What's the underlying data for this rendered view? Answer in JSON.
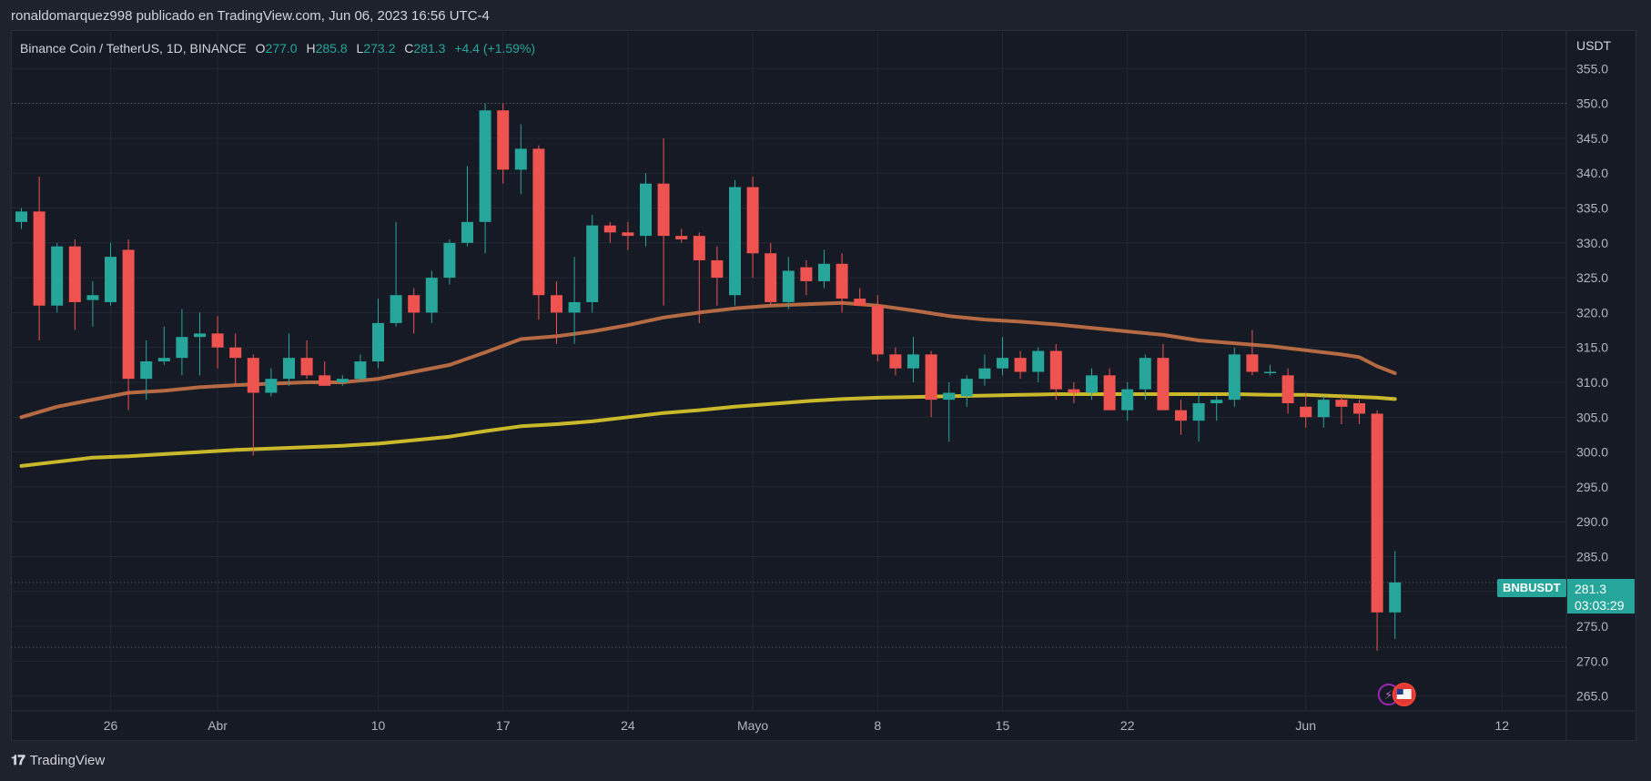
{
  "header": {
    "published_by": "ronaldomarquez998 publicado en TradingView.com, Jun 06, 2023 16:56 UTC-4"
  },
  "legend": {
    "symbol": "Binance Coin / TetherUS, 1D, BINANCE",
    "o_label": "O",
    "o_value": "277.0",
    "h_label": "H",
    "h_value": "285.8",
    "l_label": "L",
    "l_value": "273.2",
    "c_label": "C",
    "c_value": "281.3",
    "change": "+4.4 (+1.59%)"
  },
  "axis": {
    "currency": "USDT"
  },
  "price_tag": {
    "symbol": "BNBUSDT",
    "price": "281.3",
    "countdown": "03:03:29"
  },
  "footer": {
    "brand": "TradingView"
  },
  "colors": {
    "up": "#26a69a",
    "down": "#ef5350",
    "ma_fast": "#b56a43",
    "ma_slow": "#c9b82a",
    "grid": "#232733"
  },
  "chart_data": {
    "type": "candlestick",
    "ylim": [
      263,
      357
    ],
    "y_ticks": [
      265,
      270,
      275,
      280,
      285,
      290,
      295,
      300,
      305,
      310,
      315,
      320,
      325,
      330,
      335,
      340,
      345,
      350,
      355
    ],
    "x_ticks": [
      {
        "label": "26",
        "index": 5
      },
      {
        "label": "Abr",
        "index": 11
      },
      {
        "label": "10",
        "index": 20
      },
      {
        "label": "17",
        "index": 27
      },
      {
        "label": "24",
        "index": 34
      },
      {
        "label": "Mayo",
        "index": 41
      },
      {
        "label": "8",
        "index": 48
      },
      {
        "label": "15",
        "index": 55
      },
      {
        "label": "22",
        "index": 62
      },
      {
        "label": "Jun",
        "index": 72
      },
      {
        "label": "12",
        "index": 83
      }
    ],
    "candles": [
      [
        333.0,
        335.0,
        332.0,
        334.5
      ],
      [
        334.5,
        339.5,
        316.0,
        321.0
      ],
      [
        321.0,
        330.0,
        320.0,
        329.5
      ],
      [
        329.5,
        330.5,
        317.5,
        321.5
      ],
      [
        321.8,
        324.5,
        318.0,
        322.5
      ],
      [
        321.5,
        330.0,
        321.0,
        328.0
      ],
      [
        329.0,
        330.5,
        306.0,
        310.5
      ],
      [
        310.5,
        316.0,
        307.5,
        313.0
      ],
      [
        313.0,
        318.0,
        312.5,
        313.5
      ],
      [
        313.5,
        320.5,
        311.0,
        316.5
      ],
      [
        316.5,
        320.0,
        311.0,
        317.0
      ],
      [
        317.0,
        319.5,
        312.0,
        315.0
      ],
      [
        315.0,
        317.0,
        309.5,
        313.5
      ],
      [
        313.5,
        314.0,
        299.5,
        308.5
      ],
      [
        308.5,
        312.0,
        308.0,
        310.5
      ],
      [
        310.5,
        317.0,
        309.5,
        313.5
      ],
      [
        313.5,
        316.0,
        310.5,
        311.0
      ],
      [
        311.0,
        313.0,
        309.5,
        309.5
      ],
      [
        310.0,
        311.0,
        309.5,
        310.5
      ],
      [
        310.5,
        314.0,
        310.0,
        313.0
      ],
      [
        313.0,
        322.0,
        312.0,
        318.5
      ],
      [
        318.5,
        333.0,
        318.0,
        322.5
      ],
      [
        322.5,
        323.5,
        317.0,
        320.0
      ],
      [
        320.0,
        326.0,
        318.5,
        325.0
      ],
      [
        325.0,
        330.5,
        324.0,
        330.0
      ],
      [
        330.0,
        341.0,
        329.5,
        333.0
      ],
      [
        333.0,
        350.0,
        328.5,
        349.0
      ],
      [
        349.0,
        350.0,
        338.5,
        340.5
      ],
      [
        340.5,
        347.0,
        337.0,
        343.5
      ],
      [
        343.5,
        344.0,
        319.0,
        322.5
      ],
      [
        322.5,
        324.5,
        315.5,
        320.0
      ],
      [
        320.0,
        328.0,
        315.5,
        321.5
      ],
      [
        321.5,
        334.0,
        320.0,
        332.5
      ],
      [
        332.5,
        333.0,
        330.0,
        331.5
      ],
      [
        331.5,
        333.0,
        329.0,
        331.0
      ],
      [
        331.0,
        340.0,
        329.5,
        338.5
      ],
      [
        338.5,
        345.0,
        321.0,
        331.0
      ],
      [
        331.0,
        332.0,
        330.0,
        330.5
      ],
      [
        331.0,
        331.5,
        318.5,
        327.5
      ],
      [
        327.5,
        329.5,
        321.0,
        325.0
      ],
      [
        322.5,
        339.0,
        321.0,
        338.0
      ],
      [
        338.0,
        339.5,
        325.0,
        328.5
      ],
      [
        328.5,
        330.0,
        321.0,
        321.5
      ],
      [
        321.5,
        328.0,
        320.5,
        326.0
      ],
      [
        326.5,
        327.5,
        322.5,
        324.5
      ],
      [
        324.5,
        329.0,
        323.5,
        327.0
      ],
      [
        327.0,
        328.5,
        320.0,
        322.0
      ],
      [
        322.0,
        323.5,
        321.0,
        321.0
      ],
      [
        321.0,
        322.5,
        313.0,
        314.0
      ],
      [
        314.0,
        315.0,
        311.0,
        312.0
      ],
      [
        312.0,
        316.5,
        310.0,
        314.0
      ],
      [
        314.0,
        314.5,
        305.0,
        307.5
      ],
      [
        307.5,
        310.0,
        301.5,
        308.5
      ],
      [
        308.0,
        311.0,
        306.5,
        310.5
      ],
      [
        310.5,
        314.0,
        309.5,
        312.0
      ],
      [
        312.0,
        316.5,
        311.0,
        313.5
      ],
      [
        313.5,
        314.5,
        310.5,
        311.5
      ],
      [
        311.5,
        315.0,
        310.0,
        314.5
      ],
      [
        314.5,
        315.5,
        307.5,
        309.0
      ],
      [
        309.0,
        310.0,
        307.0,
        308.5
      ],
      [
        308.5,
        312.0,
        307.5,
        311.0
      ],
      [
        311.0,
        312.0,
        306.0,
        306.0
      ],
      [
        306.0,
        310.0,
        304.5,
        309.0
      ],
      [
        309.0,
        314.0,
        307.5,
        313.5
      ],
      [
        313.5,
        315.5,
        306.0,
        306.0
      ],
      [
        306.0,
        307.5,
        302.5,
        304.5
      ],
      [
        304.5,
        308.5,
        301.5,
        307.0
      ],
      [
        307.0,
        308.0,
        304.5,
        307.5
      ],
      [
        307.5,
        315.0,
        306.5,
        314.0
      ],
      [
        314.0,
        317.5,
        311.0,
        311.5
      ],
      [
        311.5,
        312.5,
        311.0,
        311.5
      ],
      [
        311.0,
        312.0,
        305.5,
        307.0
      ],
      [
        306.5,
        308.5,
        303.5,
        305.0
      ],
      [
        305.0,
        308.0,
        303.5,
        307.5
      ],
      [
        307.5,
        308.0,
        304.0,
        306.5
      ],
      [
        307.0,
        307.5,
        304.0,
        305.5
      ],
      [
        305.5,
        306.0,
        271.5,
        277.0
      ],
      [
        277.0,
        285.8,
        273.2,
        281.3
      ]
    ],
    "ma_fast": [
      [
        0,
        305.0
      ],
      [
        2,
        306.5
      ],
      [
        4,
        307.5
      ],
      [
        6,
        308.5
      ],
      [
        8,
        308.8
      ],
      [
        10,
        309.3
      ],
      [
        12,
        309.6
      ],
      [
        14,
        309.8
      ],
      [
        16,
        310.0
      ],
      [
        18,
        310.0
      ],
      [
        20,
        310.5
      ],
      [
        22,
        311.5
      ],
      [
        24,
        312.5
      ],
      [
        26,
        314.3
      ],
      [
        28,
        316.2
      ],
      [
        30,
        316.6
      ],
      [
        32,
        317.3
      ],
      [
        34,
        318.2
      ],
      [
        36,
        319.3
      ],
      [
        38,
        320.0
      ],
      [
        40,
        320.6
      ],
      [
        42,
        321.0
      ],
      [
        44,
        321.2
      ],
      [
        46,
        321.4
      ],
      [
        48,
        321.0
      ],
      [
        50,
        320.3
      ],
      [
        52,
        319.5
      ],
      [
        54,
        319.0
      ],
      [
        56,
        318.7
      ],
      [
        58,
        318.3
      ],
      [
        60,
        317.8
      ],
      [
        62,
        317.3
      ],
      [
        64,
        316.8
      ],
      [
        66,
        316.0
      ],
      [
        68,
        315.6
      ],
      [
        70,
        315.2
      ],
      [
        72,
        314.6
      ],
      [
        74,
        314.0
      ],
      [
        75,
        313.6
      ],
      [
        76,
        312.3
      ],
      [
        77,
        311.3
      ]
    ],
    "ma_slow": [
      [
        0,
        298.0
      ],
      [
        2,
        298.6
      ],
      [
        4,
        299.2
      ],
      [
        6,
        299.4
      ],
      [
        8,
        299.7
      ],
      [
        10,
        300.0
      ],
      [
        12,
        300.3
      ],
      [
        14,
        300.5
      ],
      [
        16,
        300.7
      ],
      [
        18,
        300.9
      ],
      [
        20,
        301.2
      ],
      [
        22,
        301.7
      ],
      [
        24,
        302.2
      ],
      [
        26,
        303.0
      ],
      [
        28,
        303.7
      ],
      [
        30,
        304.0
      ],
      [
        32,
        304.4
      ],
      [
        34,
        305.0
      ],
      [
        36,
        305.6
      ],
      [
        38,
        306.0
      ],
      [
        40,
        306.5
      ],
      [
        42,
        306.9
      ],
      [
        44,
        307.3
      ],
      [
        46,
        307.6
      ],
      [
        48,
        307.8
      ],
      [
        50,
        307.9
      ],
      [
        52,
        308.0
      ],
      [
        54,
        308.1
      ],
      [
        56,
        308.2
      ],
      [
        58,
        308.3
      ],
      [
        60,
        308.3
      ],
      [
        62,
        308.3
      ],
      [
        64,
        308.3
      ],
      [
        66,
        308.3
      ],
      [
        68,
        308.3
      ],
      [
        70,
        308.2
      ],
      [
        72,
        308.2
      ],
      [
        74,
        308.0
      ],
      [
        76,
        307.8
      ],
      [
        77,
        307.6
      ]
    ],
    "dotted_levels": [
      350.0,
      281.3,
      272.0
    ]
  }
}
